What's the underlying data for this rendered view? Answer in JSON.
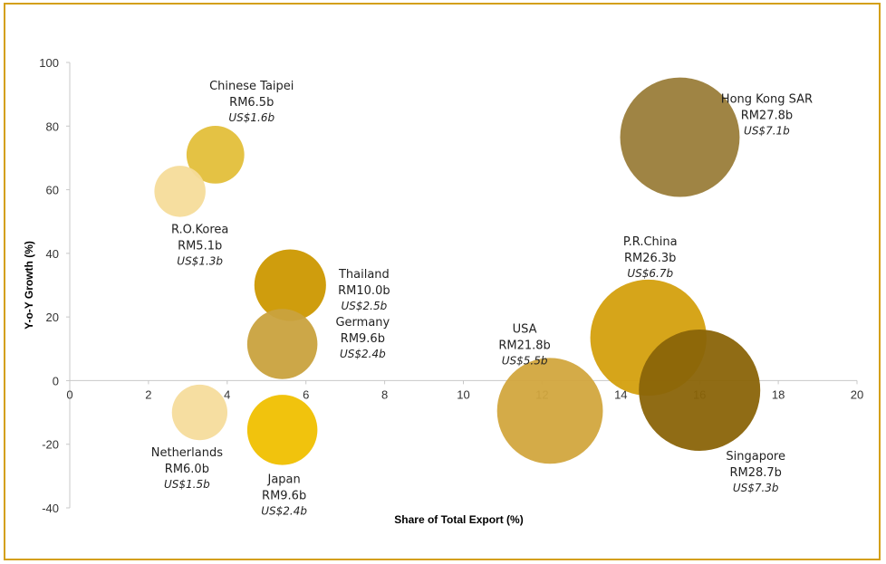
{
  "chart_data": {
    "type": "bubble",
    "xlabel": "Share of Total Export (%)",
    "ylabel": "Y-o-Y Growth (%)",
    "xlim": [
      0,
      20
    ],
    "ylim": [
      -40,
      100
    ],
    "xticks": [
      "0",
      "2",
      "4",
      "6",
      "8",
      "10",
      "12",
      "14",
      "16",
      "18",
      "20"
    ],
    "yticks": [
      "100",
      "80",
      "60",
      "40",
      "20",
      "0",
      "-20",
      "-40"
    ],
    "grid": false,
    "points": [
      {
        "name": "Hong Kong SAR",
        "x": 15.5,
        "y": 76.5,
        "rm": "RM27.8b",
        "usd": "US$7.1b",
        "color": "#9a7d3a",
        "label_pos": "right"
      },
      {
        "name": "Chinese Taipei",
        "x": 3.7,
        "y": 71,
        "rm": "RM6.5b",
        "usd": "US$1.6b",
        "color": "#e3bf3a",
        "label_pos": "above"
      },
      {
        "name": "R.O.Korea",
        "x": 2.8,
        "y": 59.5,
        "rm": "RM5.1b",
        "usd": "US$1.3b",
        "color": "#f6dc9a",
        "label_pos": "below"
      },
      {
        "name": "Thailand",
        "x": 5.6,
        "y": 30,
        "rm": "RM10.0b",
        "usd": "US$2.5b",
        "color": "#cc9800",
        "label_pos": "right"
      },
      {
        "name": "Germany",
        "x": 5.4,
        "y": 11.5,
        "rm": "RM9.6b",
        "usd": "US$2.4b",
        "color": "#c9a23e",
        "label_pos": "right"
      },
      {
        "name": "P.R.China",
        "x": 14.7,
        "y": 13.5,
        "rm": "RM26.3b",
        "usd": "US$6.7b",
        "color": "#d4a00e",
        "label_pos": "above"
      },
      {
        "name": "USA",
        "x": 12.2,
        "y": -9.5,
        "rm": "RM21.8b",
        "usd": "US$5.5b",
        "color": "#d2a73e",
        "label_pos": "above"
      },
      {
        "name": "Singapore",
        "x": 16.0,
        "y": -3,
        "rm": "RM28.7b",
        "usd": "US$7.3b",
        "color": "#8a6408",
        "label_pos": "below"
      },
      {
        "name": "Netherlands",
        "x": 3.3,
        "y": -10,
        "rm": "RM6.0b",
        "usd": "US$1.5b",
        "color": "#f5dc9c",
        "label_pos": "below"
      },
      {
        "name": "Japan",
        "x": 5.4,
        "y": -15.5,
        "rm": "RM9.6b",
        "usd": "US$2.4b",
        "color": "#f0c000",
        "label_pos": "below"
      }
    ]
  }
}
